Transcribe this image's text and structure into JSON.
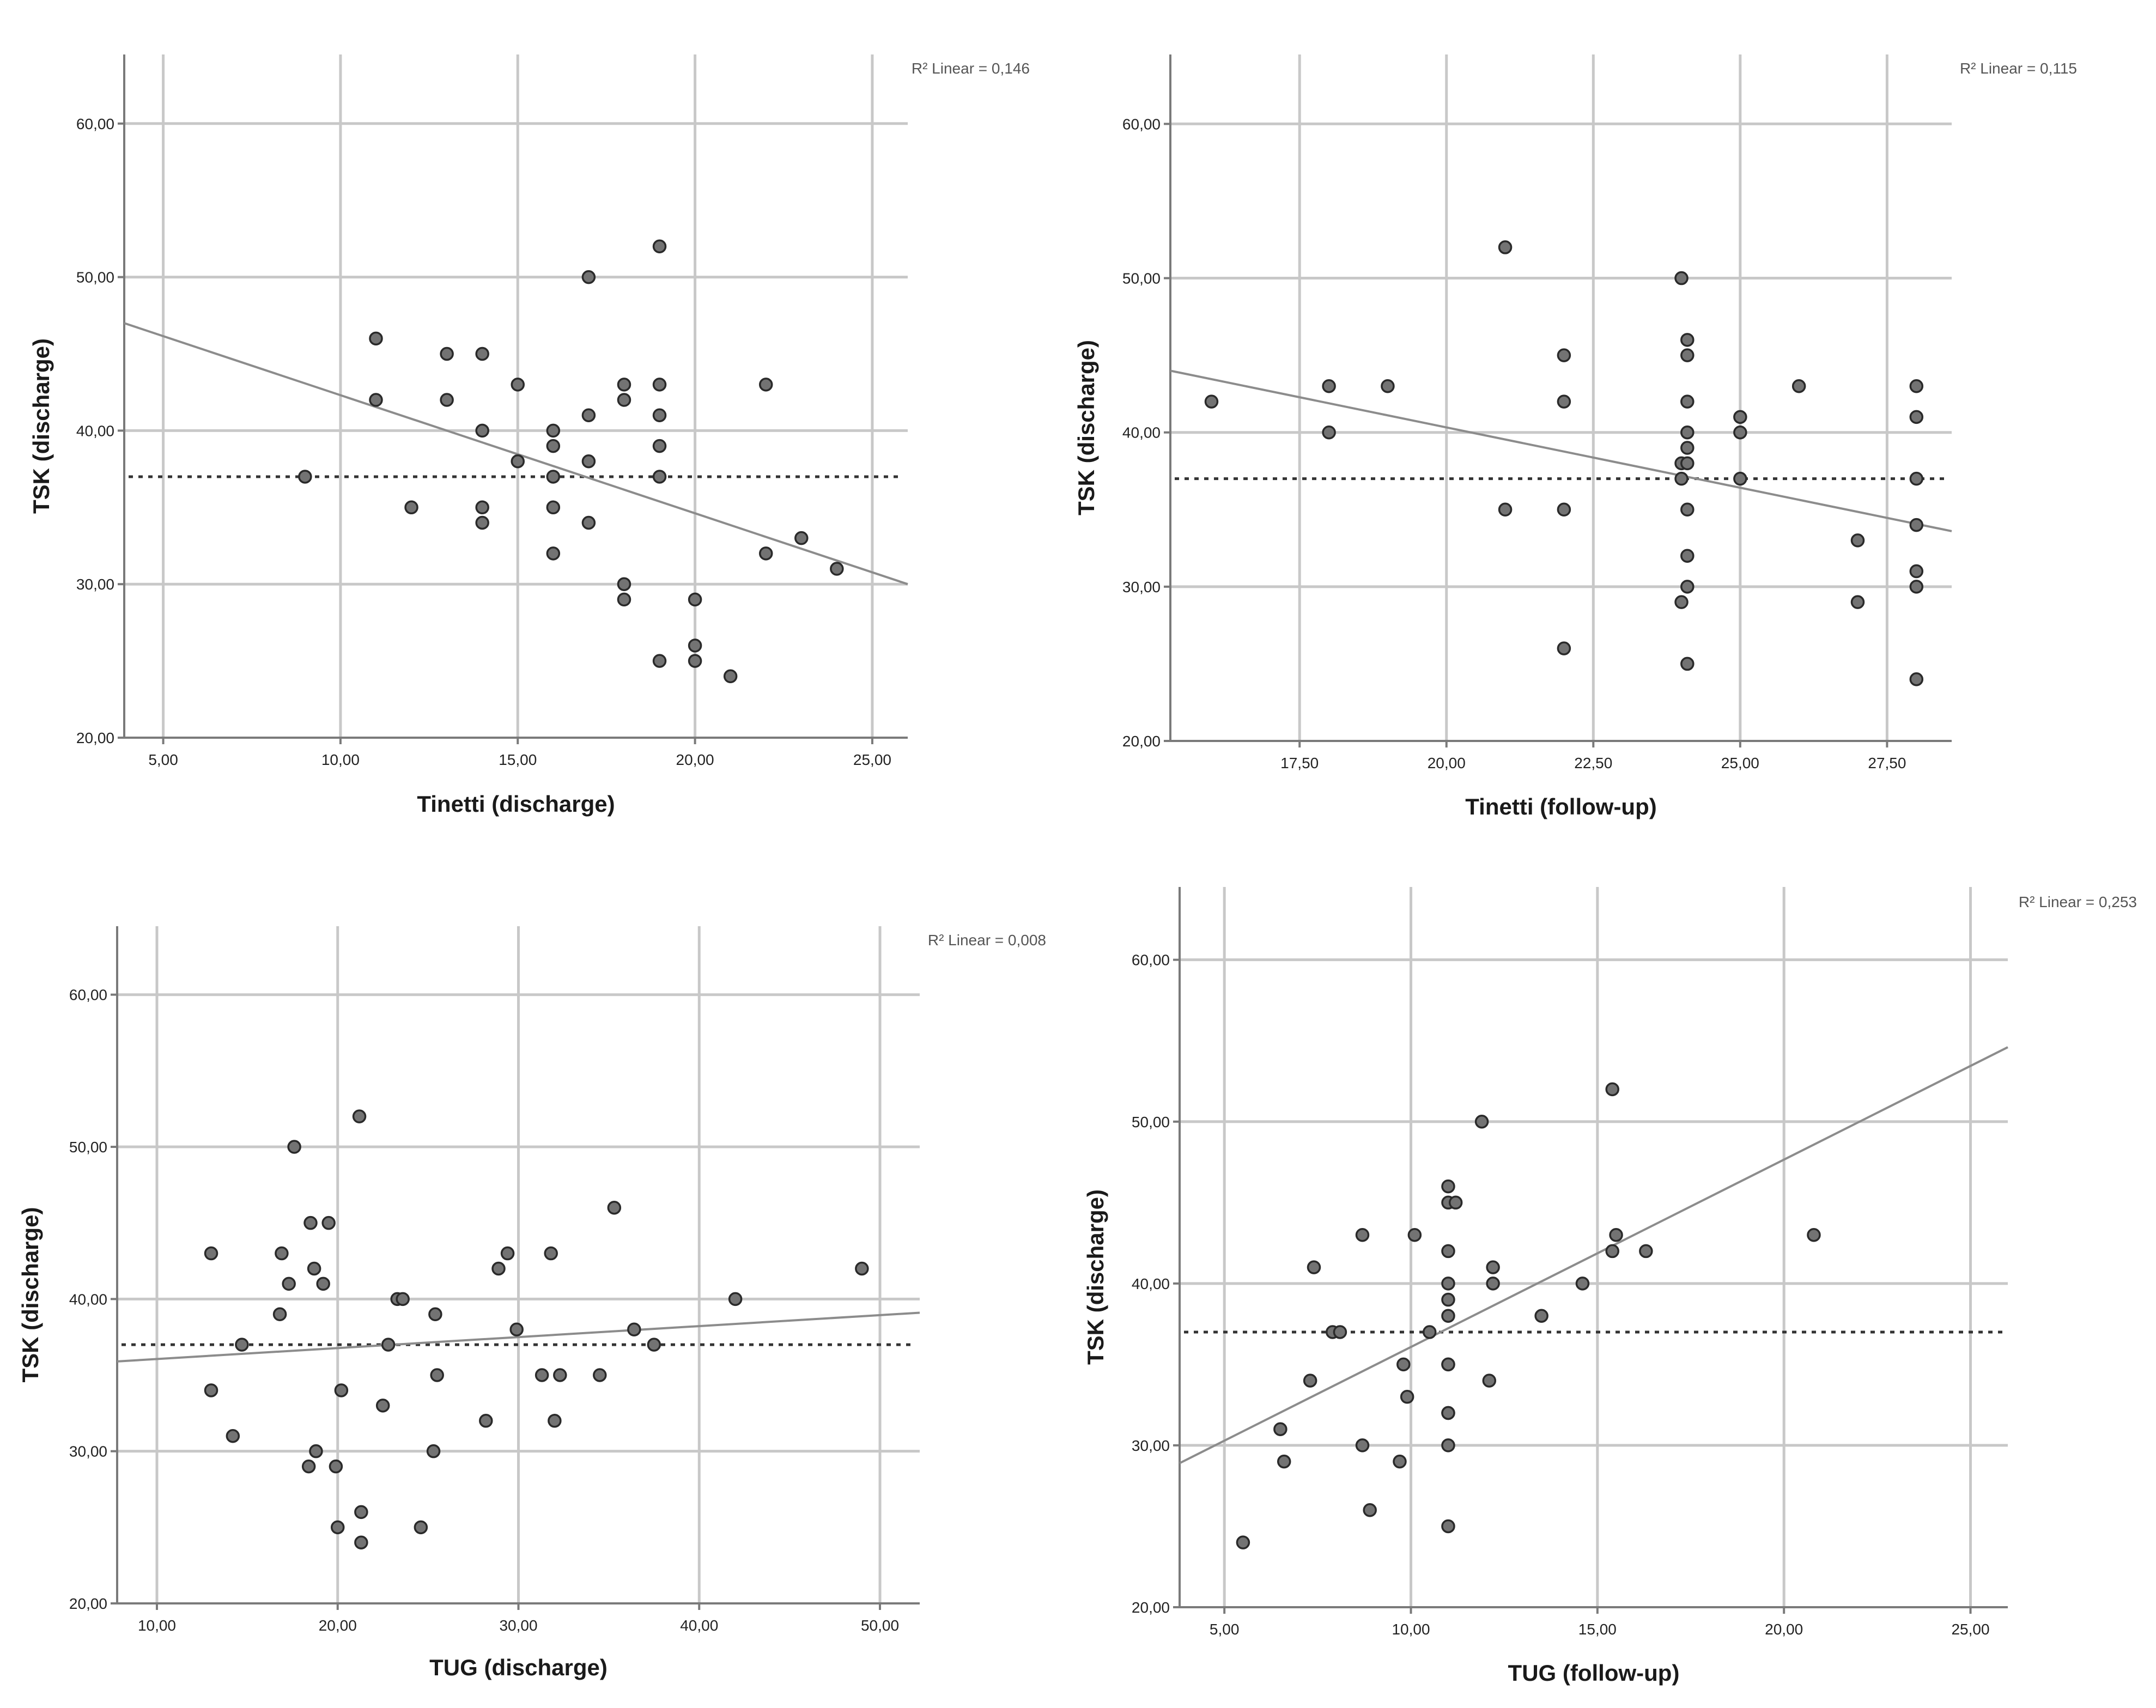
{
  "chart_data": [
    {
      "type": "scatter",
      "xlabel": "Tinetti (discharge)",
      "ylabel": "TSK (discharge)",
      "r2_label": "R² Linear = 0,146",
      "xlim": [
        3.9,
        26.0
      ],
      "ylim": [
        20,
        64.5
      ],
      "xticks": [
        5,
        10,
        15,
        20,
        25
      ],
      "xtick_labels": [
        "5,00",
        "10,00",
        "15,00",
        "20,00",
        "25,00"
      ],
      "yticks": [
        20,
        30,
        40,
        50,
        60
      ],
      "ytick_labels": [
        "20,00",
        "30,00",
        "40,00",
        "50,00",
        "60,00"
      ],
      "fit_line": {
        "x": [
          3.9,
          26.0
        ],
        "y": [
          47.0,
          30.0
        ]
      },
      "reference_y": 37,
      "points": [
        [
          9,
          37
        ],
        [
          11,
          46
        ],
        [
          11,
          42
        ],
        [
          12,
          35
        ],
        [
          13,
          45
        ],
        [
          13,
          42
        ],
        [
          14,
          45
        ],
        [
          14,
          40
        ],
        [
          14,
          35
        ],
        [
          14,
          34
        ],
        [
          15,
          43
        ],
        [
          15,
          38
        ],
        [
          16,
          40
        ],
        [
          16,
          39
        ],
        [
          16,
          37
        ],
        [
          16,
          35
        ],
        [
          16,
          32
        ],
        [
          17,
          50
        ],
        [
          17,
          41
        ],
        [
          17,
          38
        ],
        [
          17,
          34
        ],
        [
          18,
          43
        ],
        [
          18,
          42
        ],
        [
          18,
          30
        ],
        [
          18,
          29
        ],
        [
          19,
          52
        ],
        [
          19,
          43
        ],
        [
          19,
          41
        ],
        [
          19,
          39
        ],
        [
          19,
          37
        ],
        [
          19,
          25
        ],
        [
          20,
          29
        ],
        [
          20,
          26
        ],
        [
          20,
          25
        ],
        [
          21,
          24
        ],
        [
          22,
          43
        ],
        [
          22,
          32
        ],
        [
          23,
          33
        ],
        [
          24,
          31
        ]
      ]
    },
    {
      "type": "scatter",
      "xlabel": "Tinetti (follow-up)",
      "ylabel": "TSK (discharge)",
      "r2_label": "R² Linear = 0,115",
      "xlim": [
        15.3,
        28.6
      ],
      "ylim": [
        20,
        64.5
      ],
      "xticks": [
        17.5,
        20,
        22.5,
        25,
        27.5
      ],
      "xtick_labels": [
        "17,50",
        "20,00",
        "22,50",
        "25,00",
        "27,50"
      ],
      "yticks": [
        20,
        30,
        40,
        50,
        60
      ],
      "ytick_labels": [
        "20,00",
        "30,00",
        "40,00",
        "50,00",
        "60,00"
      ],
      "fit_line": {
        "x": [
          15.3,
          28.6
        ],
        "y": [
          44.0,
          33.6
        ]
      },
      "reference_y": 37,
      "points": [
        [
          16,
          42
        ],
        [
          18,
          43
        ],
        [
          18,
          40
        ],
        [
          19,
          43
        ],
        [
          21,
          52
        ],
        [
          21,
          35
        ],
        [
          22,
          45
        ],
        [
          22,
          42
        ],
        [
          22,
          35
        ],
        [
          22,
          26
        ],
        [
          24,
          50
        ],
        [
          24,
          38
        ],
        [
          24,
          37
        ],
        [
          24,
          29
        ],
        [
          24.1,
          46
        ],
        [
          24.1,
          45
        ],
        [
          24.1,
          42
        ],
        [
          24.1,
          40
        ],
        [
          24.1,
          39
        ],
        [
          24.1,
          38
        ],
        [
          24.1,
          35
        ],
        [
          24.1,
          32
        ],
        [
          24.1,
          30
        ],
        [
          24.1,
          25
        ],
        [
          25,
          41
        ],
        [
          25,
          40
        ],
        [
          25,
          37
        ],
        [
          26,
          43
        ],
        [
          27,
          33
        ],
        [
          27,
          29
        ],
        [
          28,
          43
        ],
        [
          28,
          41
        ],
        [
          28,
          37
        ],
        [
          28,
          34
        ],
        [
          28,
          31
        ],
        [
          28,
          30
        ],
        [
          28,
          24
        ]
      ]
    },
    {
      "type": "scatter",
      "xlabel": "TUG (discharge)",
      "ylabel": "TSK (discharge)",
      "r2_label": "R² Linear = 0,008",
      "xlim": [
        7.8,
        52.2
      ],
      "ylim": [
        20,
        64.5
      ],
      "xticks": [
        10,
        20,
        30,
        40,
        50
      ],
      "xtick_labels": [
        "10,00",
        "20,00",
        "30,00",
        "40,00",
        "50,00"
      ],
      "yticks": [
        20,
        30,
        40,
        50,
        60
      ],
      "ytick_labels": [
        "20,00",
        "30,00",
        "40,00",
        "50,00",
        "60,00"
      ],
      "fit_line": {
        "x": [
          7.8,
          52.2
        ],
        "y": [
          35.9,
          39.1
        ]
      },
      "reference_y": 37,
      "points": [
        [
          13,
          43
        ],
        [
          13,
          34
        ],
        [
          14.2,
          31
        ],
        [
          14.7,
          37
        ],
        [
          16.9,
          43
        ],
        [
          16.8,
          39
        ],
        [
          17.3,
          41
        ],
        [
          17.6,
          50
        ],
        [
          18.4,
          29
        ],
        [
          18.5,
          45
        ],
        [
          18.7,
          42
        ],
        [
          18.8,
          30
        ],
        [
          19.2,
          41
        ],
        [
          19.5,
          45
        ],
        [
          19.9,
          29
        ],
        [
          20,
          25
        ],
        [
          20.2,
          34
        ],
        [
          21.2,
          52
        ],
        [
          21.3,
          26
        ],
        [
          21.3,
          24
        ],
        [
          22.5,
          33
        ],
        [
          22.8,
          37
        ],
        [
          23.3,
          40
        ],
        [
          23.6,
          40
        ],
        [
          24.6,
          25
        ],
        [
          25.3,
          30
        ],
        [
          25.4,
          39
        ],
        [
          25.5,
          35
        ],
        [
          28.2,
          32
        ],
        [
          28.9,
          42
        ],
        [
          29.4,
          43
        ],
        [
          29.9,
          38
        ],
        [
          31.3,
          35
        ],
        [
          31.8,
          43
        ],
        [
          32,
          32
        ],
        [
          32.3,
          35
        ],
        [
          34.5,
          35
        ],
        [
          35.3,
          46
        ],
        [
          36.4,
          38
        ],
        [
          37.5,
          37
        ],
        [
          42,
          40
        ],
        [
          49,
          42
        ]
      ]
    },
    {
      "type": "scatter",
      "xlabel": "TUG (follow-up)",
      "ylabel": "TSK (discharge)",
      "r2_label": "R² Linear = 0,253",
      "xlim": [
        3.8,
        26.0
      ],
      "ylim": [
        20,
        64.5
      ],
      "xticks": [
        5,
        10,
        15,
        20,
        25
      ],
      "xtick_labels": [
        "5,00",
        "10,00",
        "15,00",
        "20,00",
        "25,00"
      ],
      "yticks": [
        20,
        30,
        40,
        50,
        60
      ],
      "ytick_labels": [
        "20,00",
        "30,00",
        "40,00",
        "50,00",
        "60,00"
      ],
      "fit_line": {
        "x": [
          3.8,
          26.0
        ],
        "y": [
          28.9,
          54.6
        ]
      },
      "reference_y": 37,
      "points": [
        [
          5.5,
          24
        ],
        [
          6.5,
          31
        ],
        [
          6.6,
          29
        ],
        [
          7.3,
          34
        ],
        [
          7.4,
          41
        ],
        [
          7.9,
          37
        ],
        [
          8.1,
          37
        ],
        [
          8.7,
          43
        ],
        [
          8.7,
          30
        ],
        [
          8.9,
          26
        ],
        [
          9.7,
          29
        ],
        [
          9.8,
          35
        ],
        [
          9.9,
          33
        ],
        [
          10.1,
          43
        ],
        [
          10.5,
          37
        ],
        [
          11,
          46
        ],
        [
          11,
          45
        ],
        [
          11,
          42
        ],
        [
          11,
          40
        ],
        [
          11,
          39
        ],
        [
          11,
          38
        ],
        [
          11,
          35
        ],
        [
          11,
          35
        ],
        [
          11,
          32
        ],
        [
          11,
          32
        ],
        [
          11,
          30
        ],
        [
          11,
          25
        ],
        [
          11.2,
          45
        ],
        [
          11.9,
          50
        ],
        [
          12.1,
          34
        ],
        [
          12.2,
          41
        ],
        [
          12.2,
          40
        ],
        [
          13.5,
          38
        ],
        [
          14.6,
          40
        ],
        [
          15.4,
          52
        ],
        [
          15.5,
          43
        ],
        [
          15.4,
          42
        ],
        [
          16.3,
          42
        ],
        [
          20.8,
          43
        ]
      ]
    }
  ]
}
